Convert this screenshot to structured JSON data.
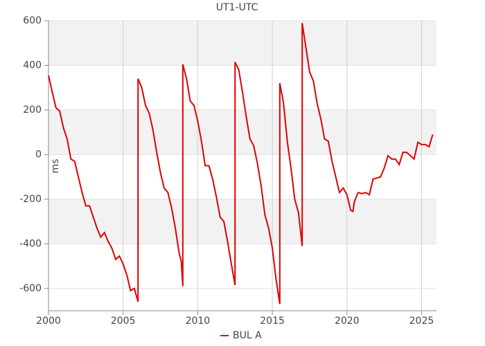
{
  "chart_data": {
    "type": "line",
    "title": "UT1-UTC",
    "ylabel": "ms",
    "x": [
      2000.0,
      2000.25,
      2000.5,
      2000.75,
      2001.0,
      2001.25,
      2001.5,
      2001.75,
      2002.0,
      2002.25,
      2002.5,
      2002.75,
      2003.0,
      2003.25,
      2003.5,
      2003.75,
      2004.0,
      2004.25,
      2004.5,
      2004.75,
      2005.0,
      2005.25,
      2005.5,
      2005.75,
      2006.0,
      2006.0,
      2006.25,
      2006.5,
      2006.75,
      2007.0,
      2007.25,
      2007.5,
      2007.75,
      2008.0,
      2008.25,
      2008.5,
      2008.75,
      2008.9,
      2009.0,
      2009.0,
      2009.25,
      2009.5,
      2009.75,
      2010.0,
      2010.25,
      2010.5,
      2010.75,
      2011.0,
      2011.25,
      2011.5,
      2011.75,
      2012.0,
      2012.25,
      2012.5,
      2012.5,
      2012.75,
      2013.0,
      2013.25,
      2013.5,
      2013.75,
      2014.0,
      2014.25,
      2014.5,
      2014.75,
      2015.0,
      2015.25,
      2015.5,
      2015.5,
      2015.75,
      2016.0,
      2016.25,
      2016.5,
      2016.75,
      2017.0,
      2017.0,
      2017.25,
      2017.5,
      2017.75,
      2018.0,
      2018.25,
      2018.5,
      2018.75,
      2019.0,
      2019.25,
      2019.5,
      2019.75,
      2020.0,
      2020.25,
      2020.4,
      2020.5,
      2020.75,
      2021.0,
      2021.25,
      2021.5,
      2021.75,
      2022.0,
      2022.25,
      2022.5,
      2022.75,
      2023.0,
      2023.25,
      2023.5,
      2023.75,
      2024.0,
      2024.25,
      2024.5,
      2024.75,
      2025.0,
      2025.25,
      2025.5,
      2025.75
    ],
    "series": [
      {
        "name": "BUL A",
        "color": "#dd0000",
        "values": [
          355,
          280,
          210,
          195,
          120,
          70,
          -20,
          -30,
          -100,
          -170,
          -230,
          -230,
          -280,
          -330,
          -370,
          -350,
          -390,
          -420,
          -470,
          -455,
          -490,
          -540,
          -610,
          -600,
          -660,
          340,
          300,
          220,
          185,
          110,
          10,
          -80,
          -150,
          -170,
          -240,
          -330,
          -440,
          -480,
          -590,
          405,
          340,
          240,
          220,
          150,
          60,
          -50,
          -50,
          -110,
          -190,
          -280,
          -300,
          -390,
          -490,
          -585,
          415,
          380,
          280,
          170,
          70,
          40,
          -40,
          -140,
          -270,
          -330,
          -420,
          -560,
          -670,
          320,
          230,
          60,
          -60,
          -200,
          -260,
          -410,
          590,
          480,
          370,
          330,
          230,
          160,
          70,
          60,
          -30,
          -100,
          -170,
          -150,
          -180,
          -250,
          -255,
          -210,
          -170,
          -175,
          -170,
          -180,
          -110,
          -105,
          -100,
          -60,
          -5,
          -20,
          -20,
          -45,
          10,
          10,
          -5,
          -20,
          55,
          45,
          45,
          35,
          90
        ]
      }
    ],
    "xlim": [
      2000,
      2026
    ],
    "xticks": [
      2000,
      2005,
      2010,
      2015,
      2020,
      2025
    ],
    "ylim": [
      -700,
      600
    ],
    "yticks": [
      -600,
      -400,
      -200,
      0,
      200,
      400,
      600
    ],
    "grid": true,
    "legend": "bottom"
  }
}
